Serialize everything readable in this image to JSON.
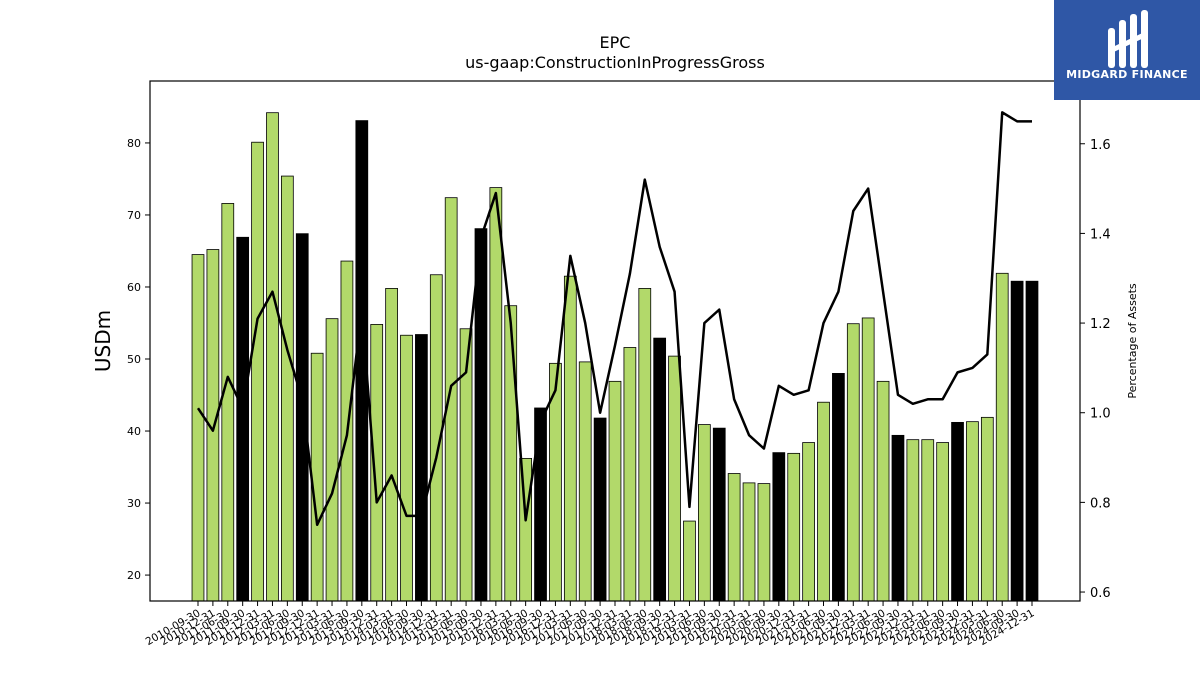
{
  "brand": {
    "name": "MIDGARD FINANCE",
    "bg_color": "#2f57a6"
  },
  "chart_data": {
    "type": "bar",
    "title": "EPC",
    "subtitle": "us-gaap:ConstructionInProgressGross",
    "ylabel": "USDm",
    "y2label": "Percentage of Assets",
    "ylim": [
      16.4,
      88.6
    ],
    "y2lim": [
      0.58,
      1.74
    ],
    "yticks": [
      20,
      30,
      40,
      50,
      60,
      70,
      80
    ],
    "y2ticks": [
      "0.6",
      "0.8",
      "1.0",
      "1.2",
      "1.4",
      "1.6"
    ],
    "colors": {
      "quarter": "#b2d96a",
      "year_end": "#000000",
      "line": "#000000"
    },
    "categories": [
      "2010-09-30",
      "2010-12-31",
      "2011-06-30",
      "2011-09-30",
      "2011-12-31",
      "2012-03-31",
      "2012-06-30",
      "2012-09-30",
      "2012-12-31",
      "2013-03-31",
      "2013-06-30",
      "2013-09-30",
      "2013-12-31",
      "2014-03-31",
      "2014-06-30",
      "2014-09-30",
      "2014-12-31",
      "2015-03-31",
      "2015-06-30",
      "2015-09-30",
      "2015-12-31",
      "2016-03-31",
      "2016-06-30",
      "2016-09-30",
      "2016-12-31",
      "2017-03-31",
      "2017-06-30",
      "2017-09-30",
      "2017-12-31",
      "2018-03-31",
      "2018-06-30",
      "2018-09-30",
      "2018-12-31",
      "2019-03-31",
      "2019-06-30",
      "2019-09-30",
      "2019-12-31",
      "2020-03-31",
      "2020-06-30",
      "2020-09-30",
      "2020-12-31",
      "2021-03-31",
      "2021-06-30",
      "2021-09-30",
      "2021-12-31",
      "2022-03-31",
      "2022-06-30",
      "2022-09-30",
      "2022-12-31",
      "2023-03-31",
      "2023-06-30",
      "2023-09-30",
      "2023-12-31",
      "2024-03-31",
      "2024-06-30",
      "2024-09-30",
      "2024-12-31"
    ],
    "year_end": [
      false,
      false,
      false,
      true,
      false,
      false,
      false,
      true,
      false,
      false,
      false,
      true,
      false,
      false,
      false,
      true,
      false,
      false,
      false,
      true,
      false,
      false,
      false,
      true,
      false,
      false,
      false,
      true,
      false,
      false,
      false,
      true,
      false,
      false,
      false,
      true,
      false,
      false,
      false,
      true,
      false,
      false,
      false,
      true,
      false,
      false,
      false,
      true,
      false,
      false,
      false,
      true,
      false,
      false,
      false,
      true,
      true
    ],
    "values": [
      64.5,
      65.2,
      71.6,
      66.9,
      80.1,
      84.2,
      75.4,
      67.4,
      50.8,
      55.6,
      63.6,
      83.1,
      54.8,
      59.8,
      53.3,
      53.4,
      61.7,
      72.4,
      54.2,
      68.1,
      73.8,
      57.4,
      36.2,
      43.2,
      49.4,
      61.5,
      49.6,
      41.8,
      46.9,
      51.6,
      59.8,
      52.9,
      50.4,
      27.5,
      40.9,
      40.4,
      34.1,
      32.8,
      32.7,
      37.0,
      36.9,
      38.4,
      44.0,
      48.0,
      54.9,
      55.7,
      46.9,
      39.4,
      38.8,
      38.8,
      38.4,
      41.2,
      41.3,
      41.9,
      61.9,
      60.8,
      60.8
    ],
    "line_values": [
      1.01,
      0.96,
      1.08,
      1.01,
      1.21,
      1.27,
      1.14,
      1.03,
      0.75,
      0.82,
      0.95,
      1.23,
      0.8,
      0.86,
      0.77,
      0.77,
      0.9,
      1.06,
      1.09,
      1.39,
      1.49,
      1.2,
      0.76,
      0.98,
      1.05,
      1.35,
      1.2,
      1.0,
      1.15,
      1.31,
      1.52,
      1.37,
      1.27,
      0.79,
      1.2,
      1.23,
      1.03,
      0.95,
      0.92,
      1.06,
      1.04,
      1.05,
      1.2,
      1.27,
      1.45,
      1.5,
      1.27,
      1.04,
      1.02,
      1.03,
      1.03,
      1.09,
      1.1,
      1.13,
      1.67,
      1.65,
      1.65
    ]
  }
}
